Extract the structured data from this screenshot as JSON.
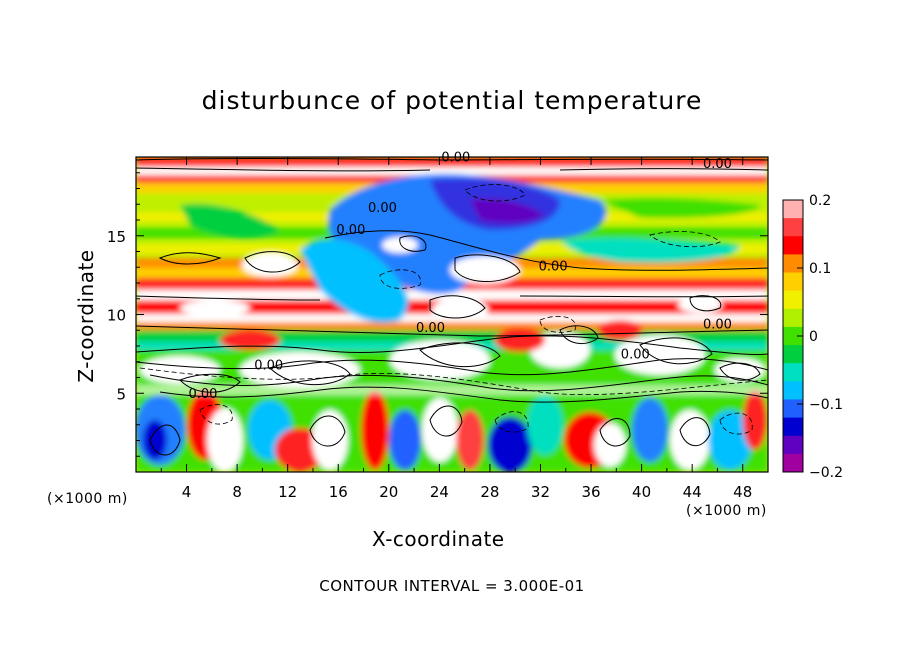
{
  "chart_data": {
    "type": "heatmap",
    "title": "disturbunce of potential temperature",
    "xlabel": "X-coordinate",
    "ylabel": "Z-coordinate",
    "x_unit_left": "(×1000 m)",
    "x_unit_right": "(×1000 m)",
    "xlim": [
      0,
      50
    ],
    "ylim": [
      0,
      20
    ],
    "x_ticks": [
      "4",
      "8",
      "12",
      "16",
      "20",
      "24",
      "28",
      "32",
      "36",
      "40",
      "44",
      "48"
    ],
    "y_ticks": [
      "5",
      "10",
      "15"
    ],
    "colorbar": {
      "ticks": [
        "0.2",
        "0.1",
        "0",
        "−0.1",
        "−0.2"
      ],
      "range": [
        -0.2,
        0.2
      ],
      "colors": [
        "#ffb0b0",
        "#ff4040",
        "#ff0000",
        "#ff8c00",
        "#ffd000",
        "#f0f000",
        "#b0f000",
        "#40e000",
        "#00d040",
        "#00e0c0",
        "#00c0ff",
        "#2060ff",
        "#0000d0",
        "#6000c0",
        "#a000a0"
      ]
    },
    "contour_labels": [
      "0.00",
      "0.00",
      "0.00",
      "0.00",
      "0.00",
      "0.00",
      "0.00",
      "0.00",
      "0.00",
      "0.00"
    ],
    "contour_interval": "CONTOUR INTERVAL = 3.000E-01"
  }
}
